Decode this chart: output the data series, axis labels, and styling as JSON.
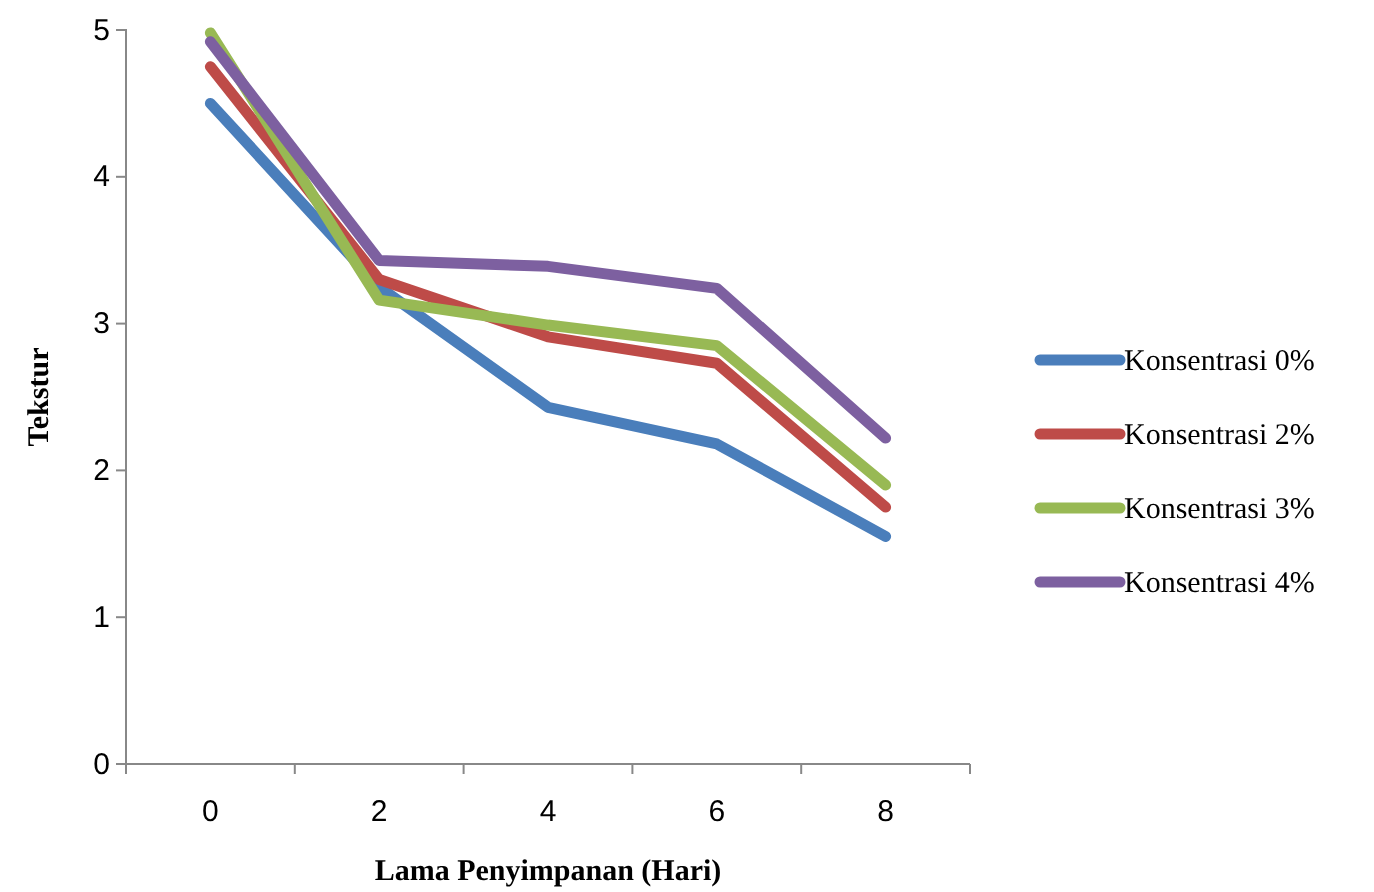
{
  "chart_data": {
    "type": "line",
    "xlabel": "Lama Penyimpanan (Hari)",
    "ylabel": "Tekstur",
    "categories": [
      "0",
      "2",
      "4",
      "6",
      "8"
    ],
    "ylim": [
      0,
      5
    ],
    "yticks": [
      0,
      1,
      2,
      3,
      4,
      5
    ],
    "grid": false,
    "legend": "right",
    "marker": "none",
    "line_style": "solid",
    "series": [
      {
        "name": "Konsentrasi 0%",
        "color": "#4a7ebb",
        "values": [
          4.5,
          3.25,
          2.43,
          2.18,
          1.55
        ]
      },
      {
        "name": "Konsentrasi 2%",
        "color": "#be4b48",
        "values": [
          4.75,
          3.3,
          2.91,
          2.73,
          1.75
        ]
      },
      {
        "name": "Konsentrasi 3%",
        "color": "#98b954",
        "values": [
          4.98,
          3.16,
          2.99,
          2.85,
          1.9
        ]
      },
      {
        "name": "Konsentrasi 4%",
        "color": "#7d60a0",
        "values": [
          4.92,
          3.43,
          3.39,
          3.24,
          2.22
        ]
      }
    ]
  }
}
